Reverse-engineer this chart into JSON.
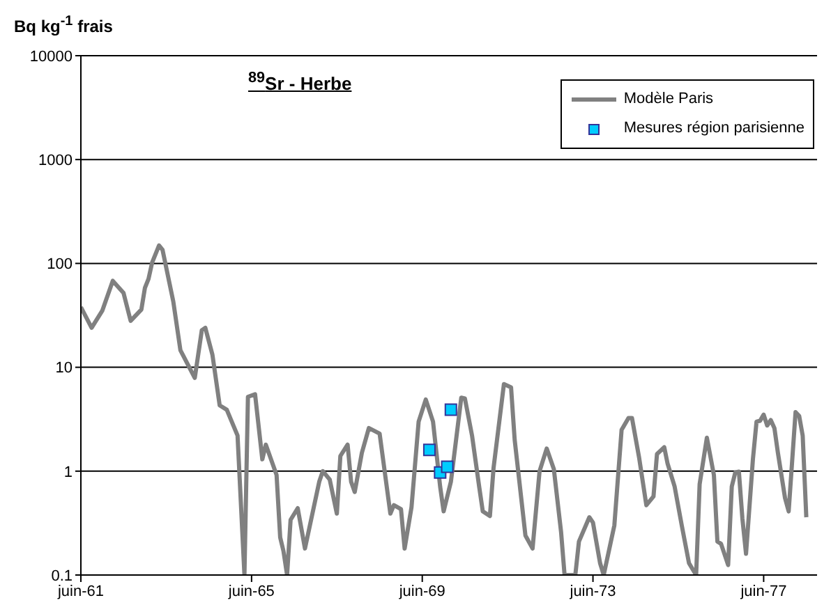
{
  "chart_data": {
    "type": "line",
    "title": "$^{89}$Sr - Herbe",
    "ylabel": "Bq kg$^{-1}$ frais",
    "log": true,
    "grid": "y",
    "legend": "top right",
    "xlim": [
      "1961-06",
      "1978-09"
    ],
    "xticks": [
      {
        "value": "1961-06",
        "label": "juin-61"
      },
      {
        "value": "1965-06",
        "label": "juin-65"
      },
      {
        "value": "1969-06",
        "label": "juin-69"
      },
      {
        "value": "1973-06",
        "label": "juin-73"
      },
      {
        "value": "1977-06",
        "label": "juin-77"
      }
    ],
    "ylim": [
      0.1,
      10000
    ],
    "yticks": [
      0.1,
      1,
      10,
      100,
      1000,
      10000
    ],
    "series": [
      {
        "name": "Modèle Paris",
        "color": "#808080",
        "marker": "none",
        "x": [
          "1961-06",
          "1961-09",
          "1961-12",
          "1962-03",
          "1962-06",
          "1962-08",
          "1962-11",
          "1962-12",
          "1963-01",
          "1963-02",
          "1963-04",
          "1963-05",
          "1963-08",
          "1963-10",
          "1964-02",
          "1964-04",
          "1964-05",
          "1964-07",
          "1964-09",
          "1964-11",
          "1965-02",
          "1965-04",
          "1965-05",
          "1965-07",
          "1965-09",
          "1965-10",
          "1966-01",
          "1966-02",
          "1966-03",
          "1966-04",
          "1966-05",
          "1966-07",
          "1966-09",
          "1967-01",
          "1967-02",
          "1967-04",
          "1967-06",
          "1967-07",
          "1967-09",
          "1967-10",
          "1967-11",
          "1968-01",
          "1968-03",
          "1968-06",
          "1968-09",
          "1968-10",
          "1968-12",
          "1969-01",
          "1969-03",
          "1969-05",
          "1969-07",
          "1969-09",
          "1969-11",
          "1969-12",
          "1970-02",
          "1970-05",
          "1970-06",
          "1970-08",
          "1970-10",
          "1970-11",
          "1971-01",
          "1971-02",
          "1971-05",
          "1971-07",
          "1971-08",
          "1971-11",
          "1972-01",
          "1972-03",
          "1972-05",
          "1972-07",
          "1972-09",
          "1972-10",
          "1973-01",
          "1973-02",
          "1973-05",
          "1973-06",
          "1973-08",
          "1973-09",
          "1973-12",
          "1974-02",
          "1974-04",
          "1974-05",
          "1974-07",
          "1974-09",
          "1974-11",
          "1974-12",
          "1975-02",
          "1975-03",
          "1975-05",
          "1975-07",
          "1975-09",
          "1975-11",
          "1975-12",
          "1976-02",
          "1976-04",
          "1976-05",
          "1976-06",
          "1976-08",
          "1976-09",
          "1976-10",
          "1976-11",
          "1976-12",
          "1977-01",
          "1977-03",
          "1977-04",
          "1977-05",
          "1977-06",
          "1977-07",
          "1977-08",
          "1977-09",
          "1977-10",
          "1977-12",
          "1978-01",
          "1978-03",
          "1978-04",
          "1978-05",
          "1978-06"
        ],
        "values": [
          38,
          24,
          35,
          68,
          52,
          28,
          36,
          58,
          71,
          102,
          149,
          135,
          43,
          14.6,
          7.9,
          22.7,
          24,
          13.2,
          4.3,
          3.9,
          2.2,
          0.1,
          5.2,
          5.5,
          1.3,
          1.8,
          0.92,
          0.23,
          0.17,
          0.1,
          0.34,
          0.44,
          0.18,
          0.79,
          1.0,
          0.83,
          0.39,
          1.4,
          1.8,
          0.79,
          0.63,
          1.5,
          2.6,
          2.3,
          0.39,
          0.47,
          0.43,
          0.18,
          0.45,
          3.0,
          4.9,
          3.0,
          0.71,
          0.41,
          0.79,
          5.1,
          5.0,
          2.2,
          0.71,
          0.41,
          0.37,
          1.07,
          6.9,
          6.4,
          2.0,
          0.24,
          0.18,
          1.0,
          1.65,
          1.05,
          0.26,
          0.1,
          0.1,
          0.21,
          0.36,
          0.32,
          0.13,
          0.1,
          0.3,
          2.5,
          3.25,
          3.25,
          1.35,
          0.47,
          0.57,
          1.46,
          1.7,
          1.19,
          0.71,
          0.3,
          0.13,
          0.1,
          0.75,
          2.1,
          0.92,
          0.21,
          0.2,
          0.125,
          0.71,
          0.97,
          0.99,
          0.35,
          0.16,
          1.3,
          3.0,
          3.05,
          3.5,
          2.75,
          3.1,
          2.6,
          1.5,
          0.55,
          0.41,
          3.7,
          3.4,
          2.2,
          0.36
        ]
      },
      {
        "name": "Mesures région parisienne",
        "type": "scatter",
        "color": "#00ccff",
        "marker": "square",
        "x": [
          "1969-08",
          "1969-11",
          "1970-01",
          "1970-02"
        ],
        "values": [
          1.6,
          0.97,
          1.1,
          3.9
        ]
      }
    ]
  }
}
